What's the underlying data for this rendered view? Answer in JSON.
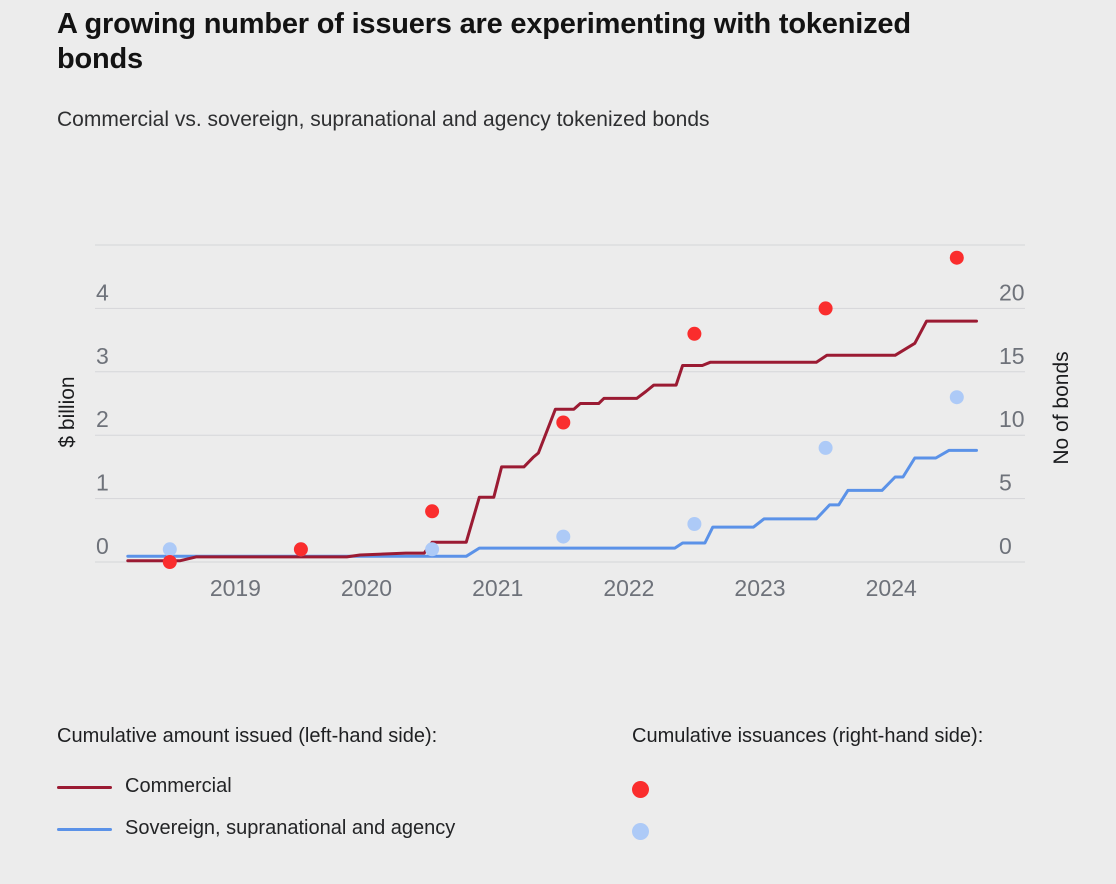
{
  "header": {
    "title": "A growing number of issuers are experimenting with tokenized bonds",
    "subtitle": "Commercial vs. sovereign, supranational and agency tokenized bonds"
  },
  "legend_left": {
    "header": "Cumulative amount issued (left-hand side):",
    "items": [
      "Commercial",
      "Sovereign, supranational and agency"
    ]
  },
  "legend_right": {
    "header": "Cumulative issuances (right-hand side):"
  },
  "colors": {
    "background": "#ECECEC",
    "grid": "#D5D6D9",
    "tick_text": "#6E727A",
    "axis_title_text": "#1B1C1E",
    "commercial_line": "#9B1B33",
    "ssa_line": "#5B92E8",
    "commercial_dot": "#FA2D2D",
    "ssa_dot": "#ADCAF7"
  },
  "chart_data": {
    "type": "line",
    "title": "A growing number of issuers are experimenting with tokenized bonds",
    "subtitle": "Commercial vs. sovereign, supranational and agency tokenized bonds",
    "grid": true,
    "left_axis": {
      "title": "$ billion",
      "ticks": [
        0,
        1,
        2,
        3,
        4
      ],
      "range": [
        0,
        5
      ]
    },
    "right_axis": {
      "title": "No of bonds",
      "ticks": [
        0,
        5,
        10,
        15,
        20
      ],
      "range": [
        0,
        25
      ]
    },
    "x_axis": {
      "ticks": [
        2019,
        2020,
        2021,
        2022,
        2023,
        2024
      ],
      "range_years": [
        2017.93,
        2025.02
      ]
    },
    "grid_values": [
      0,
      1,
      2,
      3,
      4,
      5
    ],
    "line_series": [
      {
        "name": "Commercial",
        "axis": "left",
        "units": "$ billion cumulative",
        "color": "#9B1B33",
        "points": [
          [
            2018.18,
            0.02
          ],
          [
            2018.58,
            0.02
          ],
          [
            2018.7,
            0.08
          ],
          [
            2019.85,
            0.08
          ],
          [
            2019.95,
            0.11
          ],
          [
            2020.3,
            0.14
          ],
          [
            2020.44,
            0.14
          ],
          [
            2020.5,
            0.31
          ],
          [
            2020.76,
            0.31
          ],
          [
            2020.86,
            1.02
          ],
          [
            2020.97,
            1.02
          ],
          [
            2021.03,
            1.5
          ],
          [
            2021.2,
            1.5
          ],
          [
            2021.27,
            1.65
          ],
          [
            2021.31,
            1.72
          ],
          [
            2021.44,
            2.41
          ],
          [
            2021.58,
            2.41
          ],
          [
            2021.63,
            2.5
          ],
          [
            2021.77,
            2.5
          ],
          [
            2021.81,
            2.58
          ],
          [
            2022.06,
            2.58
          ],
          [
            2022.13,
            2.69
          ],
          [
            2022.19,
            2.79
          ],
          [
            2022.36,
            2.79
          ],
          [
            2022.41,
            3.1
          ],
          [
            2022.56,
            3.1
          ],
          [
            2022.62,
            3.15
          ],
          [
            2023.43,
            3.15
          ],
          [
            2023.51,
            3.26
          ],
          [
            2024.03,
            3.26
          ],
          [
            2024.18,
            3.45
          ],
          [
            2024.27,
            3.8
          ],
          [
            2024.65,
            3.8
          ]
        ]
      },
      {
        "name": "Sovereign, supranational and agency",
        "axis": "left",
        "units": "$ billion cumulative",
        "color": "#5B92E8",
        "points": [
          [
            2018.18,
            0.09
          ],
          [
            2020.76,
            0.09
          ],
          [
            2020.86,
            0.22
          ],
          [
            2022.35,
            0.22
          ],
          [
            2022.41,
            0.3
          ],
          [
            2022.58,
            0.3
          ],
          [
            2022.64,
            0.55
          ],
          [
            2022.95,
            0.55
          ],
          [
            2023.03,
            0.68
          ],
          [
            2023.43,
            0.68
          ],
          [
            2023.53,
            0.9
          ],
          [
            2023.6,
            0.9
          ],
          [
            2023.67,
            1.13
          ],
          [
            2023.93,
            1.13
          ],
          [
            2024.03,
            1.34
          ],
          [
            2024.09,
            1.34
          ],
          [
            2024.18,
            1.64
          ],
          [
            2024.34,
            1.64
          ],
          [
            2024.44,
            1.76
          ],
          [
            2024.65,
            1.76
          ]
        ]
      }
    ],
    "scatter_series": [
      {
        "name": "Commercial",
        "axis": "right",
        "units": "cumulative number of bonds per year",
        "color": "#FA2D2D",
        "points": [
          [
            2018,
            0
          ],
          [
            2019,
            1
          ],
          [
            2020,
            4
          ],
          [
            2021,
            11
          ],
          [
            2022,
            18
          ],
          [
            2023,
            20
          ],
          [
            2024,
            24
          ]
        ]
      },
      {
        "name": "Sovereign, supranational and agency",
        "axis": "right",
        "units": "cumulative number of bonds per year",
        "color": "#ADCAF7",
        "points": [
          [
            2018,
            1
          ],
          [
            2019,
            1
          ],
          [
            2020,
            1
          ],
          [
            2021,
            2
          ],
          [
            2022,
            3
          ],
          [
            2023,
            9
          ],
          [
            2024,
            13
          ]
        ]
      }
    ]
  }
}
